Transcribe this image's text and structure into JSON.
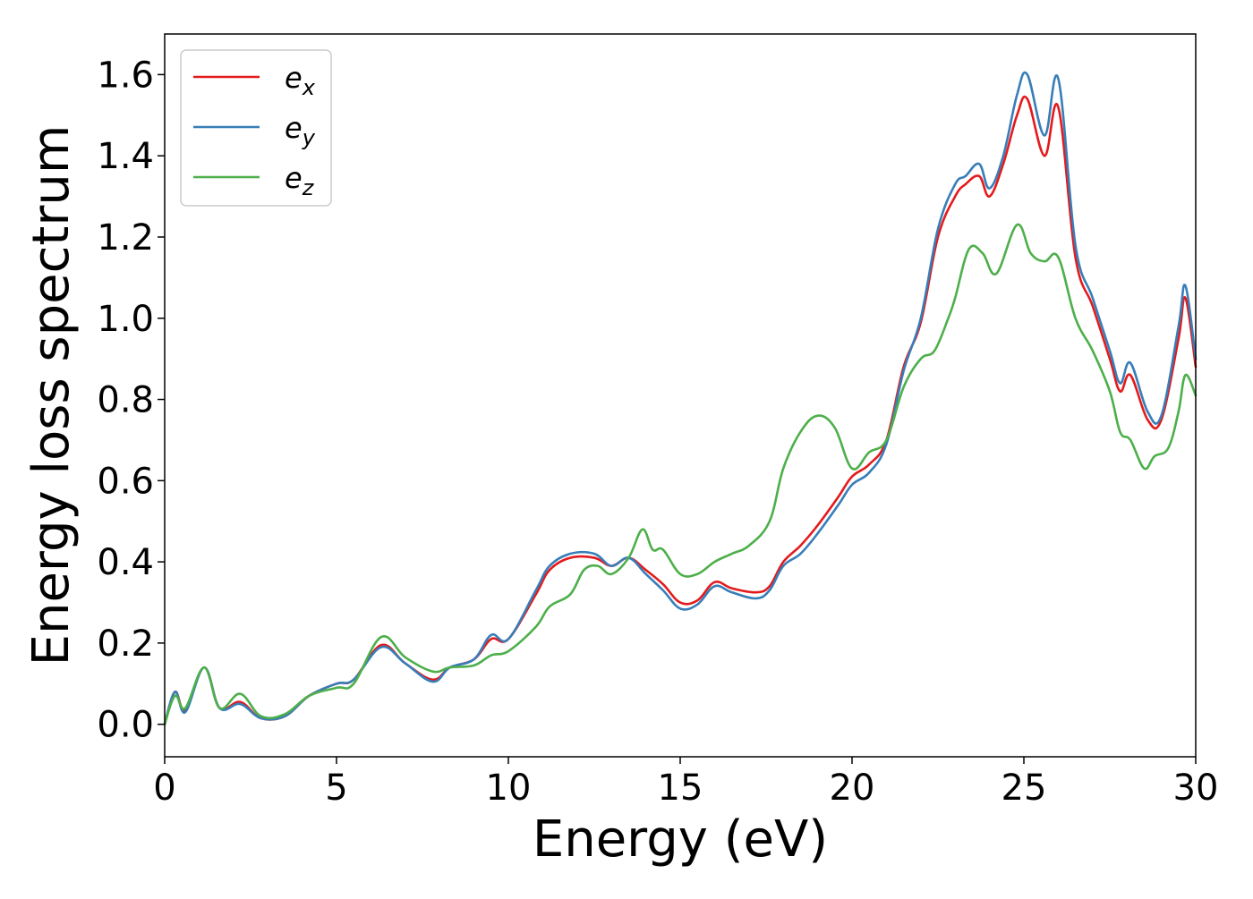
{
  "chart_data": {
    "type": "line",
    "title": "",
    "xlabel": "Energy (eV)",
    "ylabel": "Energy loss spectrum",
    "xlim": [
      0,
      30
    ],
    "ylim": [
      -0.08,
      1.7
    ],
    "xticks": [
      0,
      5,
      10,
      15,
      20,
      25,
      30
    ],
    "xtick_labels": [
      "0",
      "5",
      "10",
      "15",
      "20",
      "25",
      "30"
    ],
    "yticks": [
      0.0,
      0.2,
      0.4,
      0.6,
      0.8,
      1.0,
      1.2,
      1.4,
      1.6
    ],
    "ytick_labels": [
      "0.0",
      "0.2",
      "0.4",
      "0.6",
      "0.8",
      "1.0",
      "1.2",
      "1.4",
      "1.6"
    ],
    "grid": false,
    "legend": {
      "position": "top-left",
      "entries": [
        {
          "base": "e",
          "sub": "x",
          "color": "#e41a1c"
        },
        {
          "base": "e",
          "sub": "y",
          "color": "#377eb8"
        },
        {
          "base": "e",
          "sub": "z",
          "color": "#4daf4a"
        }
      ]
    },
    "series": [
      {
        "name": "e_x",
        "color": "#e41a1c",
        "points": [
          [
            0,
            0.0
          ],
          [
            0.3,
            0.08
          ],
          [
            0.6,
            0.035
          ],
          [
            1.15,
            0.14
          ],
          [
            1.6,
            0.04
          ],
          [
            2.2,
            0.055
          ],
          [
            2.8,
            0.015
          ],
          [
            3.5,
            0.02
          ],
          [
            4.2,
            0.07
          ],
          [
            5.0,
            0.1
          ],
          [
            5.5,
            0.11
          ],
          [
            6.3,
            0.195
          ],
          [
            7.0,
            0.15
          ],
          [
            7.8,
            0.11
          ],
          [
            8.3,
            0.14
          ],
          [
            9.0,
            0.16
          ],
          [
            9.5,
            0.21
          ],
          [
            10.0,
            0.21
          ],
          [
            10.8,
            0.32
          ],
          [
            11.2,
            0.38
          ],
          [
            11.8,
            0.41
          ],
          [
            12.5,
            0.41
          ],
          [
            13.0,
            0.39
          ],
          [
            13.5,
            0.41
          ],
          [
            14.0,
            0.38
          ],
          [
            14.5,
            0.345
          ],
          [
            15.0,
            0.3
          ],
          [
            15.5,
            0.305
          ],
          [
            16.0,
            0.35
          ],
          [
            16.5,
            0.335
          ],
          [
            17.2,
            0.325
          ],
          [
            17.6,
            0.34
          ],
          [
            18.0,
            0.4
          ],
          [
            18.5,
            0.44
          ],
          [
            19.0,
            0.49
          ],
          [
            19.6,
            0.56
          ],
          [
            20.0,
            0.61
          ],
          [
            20.5,
            0.64
          ],
          [
            21.0,
            0.7
          ],
          [
            21.5,
            0.88
          ],
          [
            22.0,
            0.99
          ],
          [
            22.5,
            1.2
          ],
          [
            23.0,
            1.3
          ],
          [
            23.3,
            1.33
          ],
          [
            23.7,
            1.35
          ],
          [
            24.0,
            1.3
          ],
          [
            24.4,
            1.38
          ],
          [
            24.8,
            1.5
          ],
          [
            25.1,
            1.54
          ],
          [
            25.6,
            1.4
          ],
          [
            26.0,
            1.52
          ],
          [
            26.5,
            1.15
          ],
          [
            27.0,
            1.03
          ],
          [
            27.5,
            0.9
          ],
          [
            27.8,
            0.82
          ],
          [
            28.1,
            0.86
          ],
          [
            28.6,
            0.75
          ],
          [
            29.0,
            0.75
          ],
          [
            29.5,
            0.95
          ],
          [
            29.7,
            1.05
          ],
          [
            30.0,
            0.88
          ]
        ]
      },
      {
        "name": "e_y",
        "color": "#377eb8",
        "points": [
          [
            0,
            0.0
          ],
          [
            0.3,
            0.08
          ],
          [
            0.6,
            0.03
          ],
          [
            1.15,
            0.14
          ],
          [
            1.6,
            0.04
          ],
          [
            2.2,
            0.05
          ],
          [
            2.8,
            0.015
          ],
          [
            3.5,
            0.02
          ],
          [
            4.2,
            0.07
          ],
          [
            5.0,
            0.1
          ],
          [
            5.5,
            0.11
          ],
          [
            6.3,
            0.19
          ],
          [
            7.0,
            0.15
          ],
          [
            7.8,
            0.105
          ],
          [
            8.3,
            0.14
          ],
          [
            9.0,
            0.16
          ],
          [
            9.5,
            0.22
          ],
          [
            10.0,
            0.21
          ],
          [
            10.8,
            0.33
          ],
          [
            11.2,
            0.39
          ],
          [
            11.8,
            0.42
          ],
          [
            12.5,
            0.42
          ],
          [
            13.0,
            0.39
          ],
          [
            13.5,
            0.41
          ],
          [
            14.0,
            0.37
          ],
          [
            14.5,
            0.33
          ],
          [
            15.0,
            0.285
          ],
          [
            15.5,
            0.295
          ],
          [
            16.0,
            0.34
          ],
          [
            16.5,
            0.325
          ],
          [
            17.2,
            0.31
          ],
          [
            17.6,
            0.33
          ],
          [
            18.0,
            0.39
          ],
          [
            18.5,
            0.42
          ],
          [
            19.0,
            0.47
          ],
          [
            19.6,
            0.54
          ],
          [
            20.0,
            0.59
          ],
          [
            20.5,
            0.62
          ],
          [
            21.0,
            0.69
          ],
          [
            21.5,
            0.87
          ],
          [
            22.0,
            1.0
          ],
          [
            22.5,
            1.22
          ],
          [
            23.0,
            1.33
          ],
          [
            23.3,
            1.35
          ],
          [
            23.7,
            1.38
          ],
          [
            24.0,
            1.32
          ],
          [
            24.4,
            1.4
          ],
          [
            24.8,
            1.55
          ],
          [
            25.1,
            1.6
          ],
          [
            25.6,
            1.45
          ],
          [
            26.0,
            1.59
          ],
          [
            26.5,
            1.18
          ],
          [
            27.0,
            1.05
          ],
          [
            27.5,
            0.92
          ],
          [
            27.8,
            0.84
          ],
          [
            28.1,
            0.89
          ],
          [
            28.6,
            0.77
          ],
          [
            29.0,
            0.76
          ],
          [
            29.5,
            0.98
          ],
          [
            29.7,
            1.08
          ],
          [
            30.0,
            0.9
          ]
        ]
      },
      {
        "name": "e_z",
        "color": "#4daf4a",
        "points": [
          [
            0,
            0.0
          ],
          [
            0.3,
            0.07
          ],
          [
            0.6,
            0.04
          ],
          [
            1.15,
            0.14
          ],
          [
            1.6,
            0.04
          ],
          [
            2.2,
            0.075
          ],
          [
            2.8,
            0.02
          ],
          [
            3.5,
            0.025
          ],
          [
            4.2,
            0.07
          ],
          [
            5.0,
            0.09
          ],
          [
            5.5,
            0.1
          ],
          [
            6.3,
            0.215
          ],
          [
            7.0,
            0.165
          ],
          [
            7.8,
            0.13
          ],
          [
            8.3,
            0.14
          ],
          [
            9.0,
            0.145
          ],
          [
            9.5,
            0.17
          ],
          [
            10.0,
            0.18
          ],
          [
            10.8,
            0.24
          ],
          [
            11.2,
            0.29
          ],
          [
            11.8,
            0.32
          ],
          [
            12.2,
            0.38
          ],
          [
            12.6,
            0.39
          ],
          [
            13.0,
            0.37
          ],
          [
            13.5,
            0.41
          ],
          [
            13.9,
            0.48
          ],
          [
            14.2,
            0.43
          ],
          [
            14.5,
            0.43
          ],
          [
            15.0,
            0.37
          ],
          [
            15.5,
            0.37
          ],
          [
            16.0,
            0.4
          ],
          [
            16.5,
            0.42
          ],
          [
            17.0,
            0.44
          ],
          [
            17.6,
            0.5
          ],
          [
            18.0,
            0.63
          ],
          [
            18.5,
            0.72
          ],
          [
            19.0,
            0.76
          ],
          [
            19.5,
            0.73
          ],
          [
            20.0,
            0.63
          ],
          [
            20.5,
            0.67
          ],
          [
            21.0,
            0.7
          ],
          [
            21.5,
            0.83
          ],
          [
            22.0,
            0.9
          ],
          [
            22.4,
            0.92
          ],
          [
            22.8,
            1.0
          ],
          [
            23.0,
            1.05
          ],
          [
            23.4,
            1.17
          ],
          [
            23.8,
            1.16
          ],
          [
            24.2,
            1.11
          ],
          [
            24.8,
            1.23
          ],
          [
            25.2,
            1.16
          ],
          [
            25.6,
            1.14
          ],
          [
            26.0,
            1.15
          ],
          [
            26.5,
            1.0
          ],
          [
            27.0,
            0.92
          ],
          [
            27.5,
            0.82
          ],
          [
            27.8,
            0.72
          ],
          [
            28.1,
            0.7
          ],
          [
            28.5,
            0.63
          ],
          [
            28.8,
            0.66
          ],
          [
            29.2,
            0.68
          ],
          [
            29.5,
            0.77
          ],
          [
            29.7,
            0.86
          ],
          [
            30.0,
            0.81
          ]
        ]
      }
    ]
  }
}
